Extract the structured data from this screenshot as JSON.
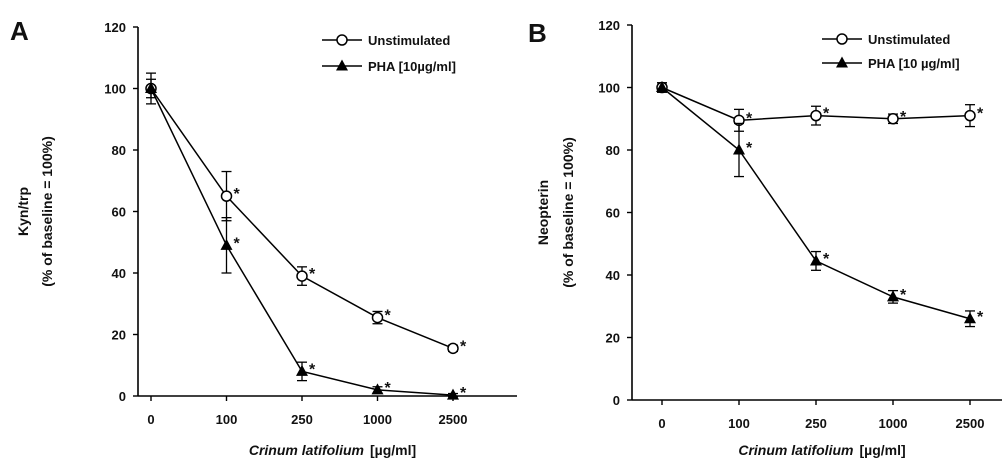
{
  "chart_data": [
    {
      "panel_label": "A",
      "type": "line",
      "categories": [
        "0",
        "100",
        "250",
        "1000",
        "2500"
      ],
      "xlabel_italic": "Crinum latifolium",
      "xlabel_unit": "[µg/ml]",
      "ylabel_line1": "Kyn/trp",
      "ylabel_line2": "(% of baseline = 100%)",
      "ylim": [
        0,
        120
      ],
      "yticks": [
        0,
        20,
        40,
        60,
        80,
        100,
        120
      ],
      "grid": false,
      "legend_position": "top-right",
      "series": [
        {
          "name": "Unstimulated",
          "marker": "open-circle",
          "values": [
            100,
            65,
            39,
            25.5,
            15.5
          ],
          "errors": [
            5,
            8,
            3,
            2,
            1
          ],
          "significance": [
            "",
            "*",
            "*",
            "*",
            "*"
          ]
        },
        {
          "name": "PHA [10µg/ml]",
          "marker": "filled-triangle",
          "values": [
            100,
            49,
            8,
            2,
            0.3
          ],
          "errors": [
            3,
            9,
            3,
            1,
            0.5
          ],
          "significance": [
            "",
            "*",
            "*",
            "*",
            "*"
          ]
        }
      ]
    },
    {
      "panel_label": "B",
      "type": "line",
      "categories": [
        "0",
        "100",
        "250",
        "1000",
        "2500"
      ],
      "xlabel_italic": "Crinum latifolium",
      "xlabel_unit": "[µg/ml]",
      "ylabel_line1": "Neopterin",
      "ylabel_line2": "(% of baseline = 100%)",
      "ylim": [
        0,
        120
      ],
      "yticks": [
        0,
        20,
        40,
        60,
        80,
        100,
        120
      ],
      "grid": false,
      "legend_position": "top-right",
      "series": [
        {
          "name": "Unstimulated",
          "marker": "open-circle",
          "values": [
            100,
            89.5,
            91,
            90,
            91
          ],
          "errors": [
            1.5,
            3.5,
            3,
            1.5,
            3.5
          ],
          "significance": [
            "",
            "*",
            "*",
            "*",
            "*"
          ]
        },
        {
          "name": "PHA [10 µg/ml]",
          "marker": "filled-triangle",
          "values": [
            100,
            80,
            44.5,
            33,
            26
          ],
          "errors": [
            1.5,
            8.5,
            3,
            2,
            2.5
          ],
          "significance": [
            "",
            "*",
            "*",
            "*",
            "*"
          ]
        }
      ]
    }
  ]
}
